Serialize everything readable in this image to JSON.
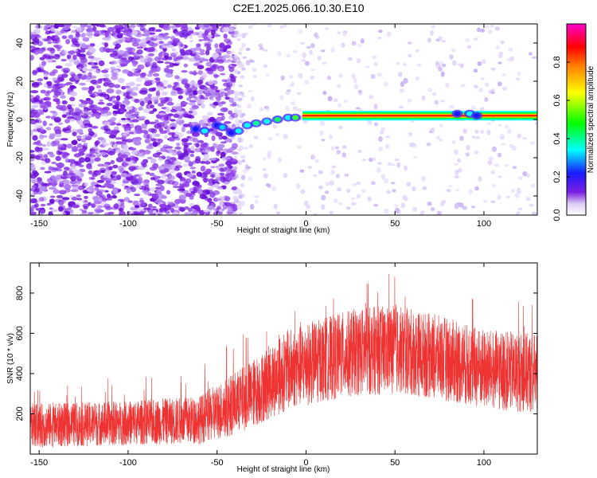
{
  "title": "C2E1.2025.066.10.30.E10",
  "colors": {
    "snr_line": "#ee3333",
    "axis": "#000000",
    "scatter": "#8a2be2"
  },
  "chart_data": [
    {
      "type": "heatmap",
      "title": "C2E1.2025.066.10.30.E10",
      "xlabel": "Height of straight line (km)",
      "ylabel": "Frequency (Hz)",
      "xlim": [
        -155,
        130
      ],
      "ylim": [
        -50,
        50
      ],
      "xticks": [
        -150,
        -100,
        -50,
        0,
        50,
        100
      ],
      "yticks": [
        -40,
        -20,
        0,
        20,
        40
      ],
      "colorbar": {
        "label": "Normalized spectral amplitude",
        "range": [
          0,
          1
        ],
        "ticks": [
          0.0,
          0.2,
          0.4,
          0.6,
          0.8
        ],
        "colormap": "rainbow"
      },
      "ridge": {
        "description_points": [
          [
            -60,
            -5
          ],
          [
            -40,
            -6
          ],
          [
            -20,
            -1
          ],
          [
            0,
            2
          ],
          [
            130,
            2
          ]
        ]
      }
    },
    {
      "type": "line",
      "xlabel": "Height of straight line (km)",
      "ylabel": "SNR (10 * v/v)",
      "xlim": [
        -155,
        130
      ],
      "ylim": [
        0,
        950
      ],
      "xticks": [
        -150,
        -100,
        -50,
        0,
        50,
        100
      ],
      "yticks": [
        200,
        400,
        600,
        800
      ],
      "envelope": {
        "x": [
          -155,
          -100,
          -60,
          -45,
          -30,
          -10,
          10,
          30,
          50,
          75,
          100,
          130
        ],
        "mean": [
          140,
          155,
          170,
          230,
          300,
          420,
          470,
          510,
          520,
          480,
          420,
          400
        ],
        "spread": [
          110,
          110,
          120,
          150,
          170,
          200,
          210,
          220,
          220,
          210,
          200,
          200
        ]
      }
    }
  ]
}
